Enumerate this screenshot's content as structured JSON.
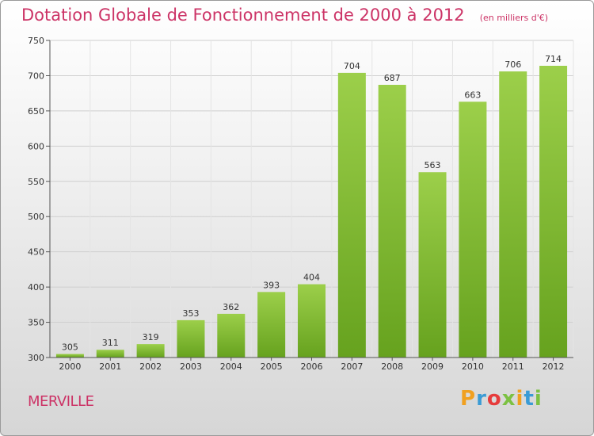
{
  "header": {
    "title": "Dotation Globale de Fonctionnement de 2000 à 2012",
    "unit": "(en milliers d'€)"
  },
  "footer": {
    "commune": "MERVILLE",
    "brand_letters": [
      "P",
      "r",
      "o",
      "x",
      "i",
      "t",
      "i"
    ],
    "brand_colors": [
      "#f0a020",
      "#3a9bd5",
      "#e63c3c",
      "#7cc142",
      "#f0a020",
      "#3a9bd5",
      "#7cc142"
    ]
  },
  "colors": {
    "bar_light": "#9ccf4a",
    "bar_dark": "#66a21e",
    "grid": "#cfcfcf",
    "axis": "#555555",
    "accent": "#cc3366"
  },
  "chart_data": {
    "type": "bar",
    "title": "Dotation Globale de Fonctionnement de 2000 à 2012",
    "subtitle": "(en milliers d'€)",
    "xlabel": "",
    "ylabel": "",
    "categories": [
      "2000",
      "2001",
      "2002",
      "2003",
      "2004",
      "2005",
      "2006",
      "2007",
      "2008",
      "2009",
      "2010",
      "2011",
      "2012"
    ],
    "values": [
      305,
      311,
      319,
      353,
      362,
      393,
      404,
      704,
      687,
      563,
      663,
      706,
      714
    ],
    "ylim": [
      300,
      750
    ],
    "yticks": [
      300,
      350,
      400,
      450,
      500,
      550,
      600,
      650,
      700,
      750
    ],
    "grid": true,
    "legend": "none"
  }
}
